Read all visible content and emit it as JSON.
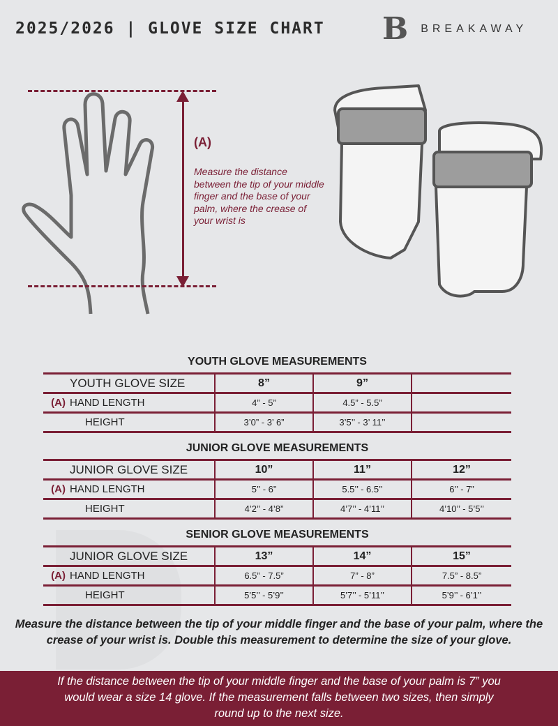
{
  "header": {
    "title": "2025/2026 | GLOVE SIZE CHART",
    "brand_mark": "B",
    "brand_name": "BREAKAWAY"
  },
  "diagram": {
    "label": "(A)",
    "description": "Measure the distance between the tip of your middle finger and the base of your palm, where the crease of your wrist is"
  },
  "colors": {
    "accent": "#7a1f35",
    "background": "#e6e7e9"
  },
  "tables": [
    {
      "title": "YOUTH GLOVE MEASUREMENTS",
      "size_label": "YOUTH GLOVE SIZE",
      "sizes": [
        "8”",
        "9”",
        ""
      ],
      "hand_marker": "(A)",
      "hand_label": "HAND LENGTH",
      "hand": [
        "4” - 5”",
        "4.5” - 5.5”",
        ""
      ],
      "height_label": "HEIGHT",
      "height": [
        "3’0” - 3’ 6”",
        "3’5’’ - 3’ 11’’",
        ""
      ]
    },
    {
      "title": "JUNIOR GLOVE MEASUREMENTS",
      "size_label": "JUNIOR GLOVE SIZE",
      "sizes": [
        "10”",
        "11”",
        "12”"
      ],
      "hand_marker": "(A)",
      "hand_label": "HAND LENGTH",
      "hand": [
        "5’’ - 6”",
        "5.5’’ - 6.5’’",
        "6’’ - 7”"
      ],
      "height_label": "HEIGHT",
      "height": [
        "4’2’’ - 4’8”",
        "4’7’’ - 4’11’’",
        "4’10’’ - 5’5’’"
      ]
    },
    {
      "title": "SENIOR GLOVE MEASUREMENTS",
      "size_label": "JUNIOR GLOVE SIZE",
      "sizes": [
        "13”",
        "14”",
        "15”"
      ],
      "hand_marker": "(A)",
      "hand_label": "HAND LENGTH",
      "hand": [
        "6.5” - 7.5”",
        "7” - 8”",
        "7.5” - 8.5”"
      ],
      "height_label": "HEIGHT",
      "height": [
        "5’5’’ - 5’9’’",
        "5’7’’ - 5’11’’",
        "5’9’’ - 6’1’’"
      ]
    }
  ],
  "note": "Measure the distance between the tip of your middle finger and the base of your palm, where the crease of your wrist is. Double this measurement to determine the size of your glove.",
  "footer": "If the distance between the tip of your middle finger and the base of your palm is 7” you would wear a size 14 glove. If the measurement falls between two sizes, then simply round up to the next size."
}
